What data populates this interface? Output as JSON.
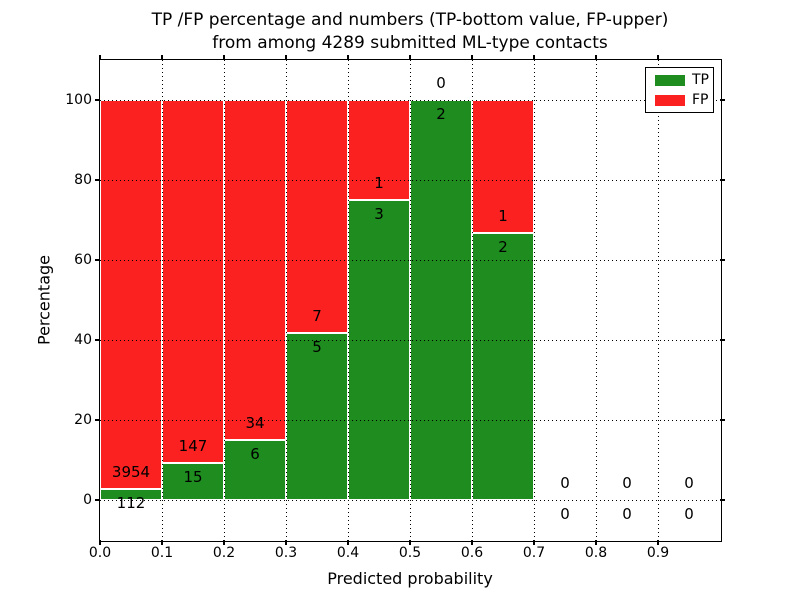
{
  "chart_data": {
    "type": "bar",
    "stacked": true,
    "units": "percent",
    "title": "TP /FP percentage and numbers (TP-bottom value, FP-upper)",
    "subtitle": "from among 4289 submitted ML-type contacts",
    "xlabel": "Predicted probability",
    "ylabel": "Percentage",
    "xlim": [
      0.0,
      1.0
    ],
    "ylim": [
      -10,
      110
    ],
    "grid": true,
    "x_tick_values": [
      0.0,
      0.1,
      0.2,
      0.3,
      0.4,
      0.5,
      0.6,
      0.7,
      0.8,
      0.9
    ],
    "x_tick_labels": [
      "0.0",
      "0.1",
      "0.2",
      "0.3",
      "0.4",
      "0.5",
      "0.6",
      "0.7",
      "0.8",
      "0.9"
    ],
    "y_tick_values": [
      0,
      20,
      40,
      60,
      80,
      100
    ],
    "y_tick_labels": [
      "0",
      "20",
      "40",
      "60",
      "80",
      "100"
    ],
    "total_contacts": 4289,
    "colors": {
      "tp": "#1e8c1e",
      "fp": "#fb2121",
      "bar_edge": "#ffffff"
    },
    "legend": {
      "position": "upper-right",
      "entries": [
        {
          "label": "TP",
          "color": "#1e8c1e"
        },
        {
          "label": "FP",
          "color": "#fb2121"
        }
      ]
    },
    "bins": [
      {
        "range": [
          0.0,
          0.1
        ],
        "tp": 112,
        "fp": 3954,
        "tp_pct": 2.75,
        "fp_pct": 97.25
      },
      {
        "range": [
          0.1,
          0.2
        ],
        "tp": 15,
        "fp": 147,
        "tp_pct": 9.26,
        "fp_pct": 90.74
      },
      {
        "range": [
          0.2,
          0.3
        ],
        "tp": 6,
        "fp": 34,
        "tp_pct": 15.0,
        "fp_pct": 85.0
      },
      {
        "range": [
          0.3,
          0.4
        ],
        "tp": 5,
        "fp": 7,
        "tp_pct": 41.67,
        "fp_pct": 58.33
      },
      {
        "range": [
          0.4,
          0.5
        ],
        "tp": 3,
        "fp": 1,
        "tp_pct": 75.0,
        "fp_pct": 25.0
      },
      {
        "range": [
          0.5,
          0.6
        ],
        "tp": 2,
        "fp": 0,
        "tp_pct": 100.0,
        "fp_pct": 0.0
      },
      {
        "range": [
          0.6,
          0.7
        ],
        "tp": 2,
        "fp": 1,
        "tp_pct": 66.67,
        "fp_pct": 33.33
      },
      {
        "range": [
          0.7,
          0.8
        ],
        "tp": 0,
        "fp": 0,
        "tp_pct": 0.0,
        "fp_pct": 0.0
      },
      {
        "range": [
          0.8,
          0.9
        ],
        "tp": 0,
        "fp": 0,
        "tp_pct": 0.0,
        "fp_pct": 0.0
      },
      {
        "range": [
          0.9,
          1.0
        ],
        "tp": 0,
        "fp": 0,
        "tp_pct": 0.0,
        "fp_pct": 0.0
      }
    ]
  }
}
